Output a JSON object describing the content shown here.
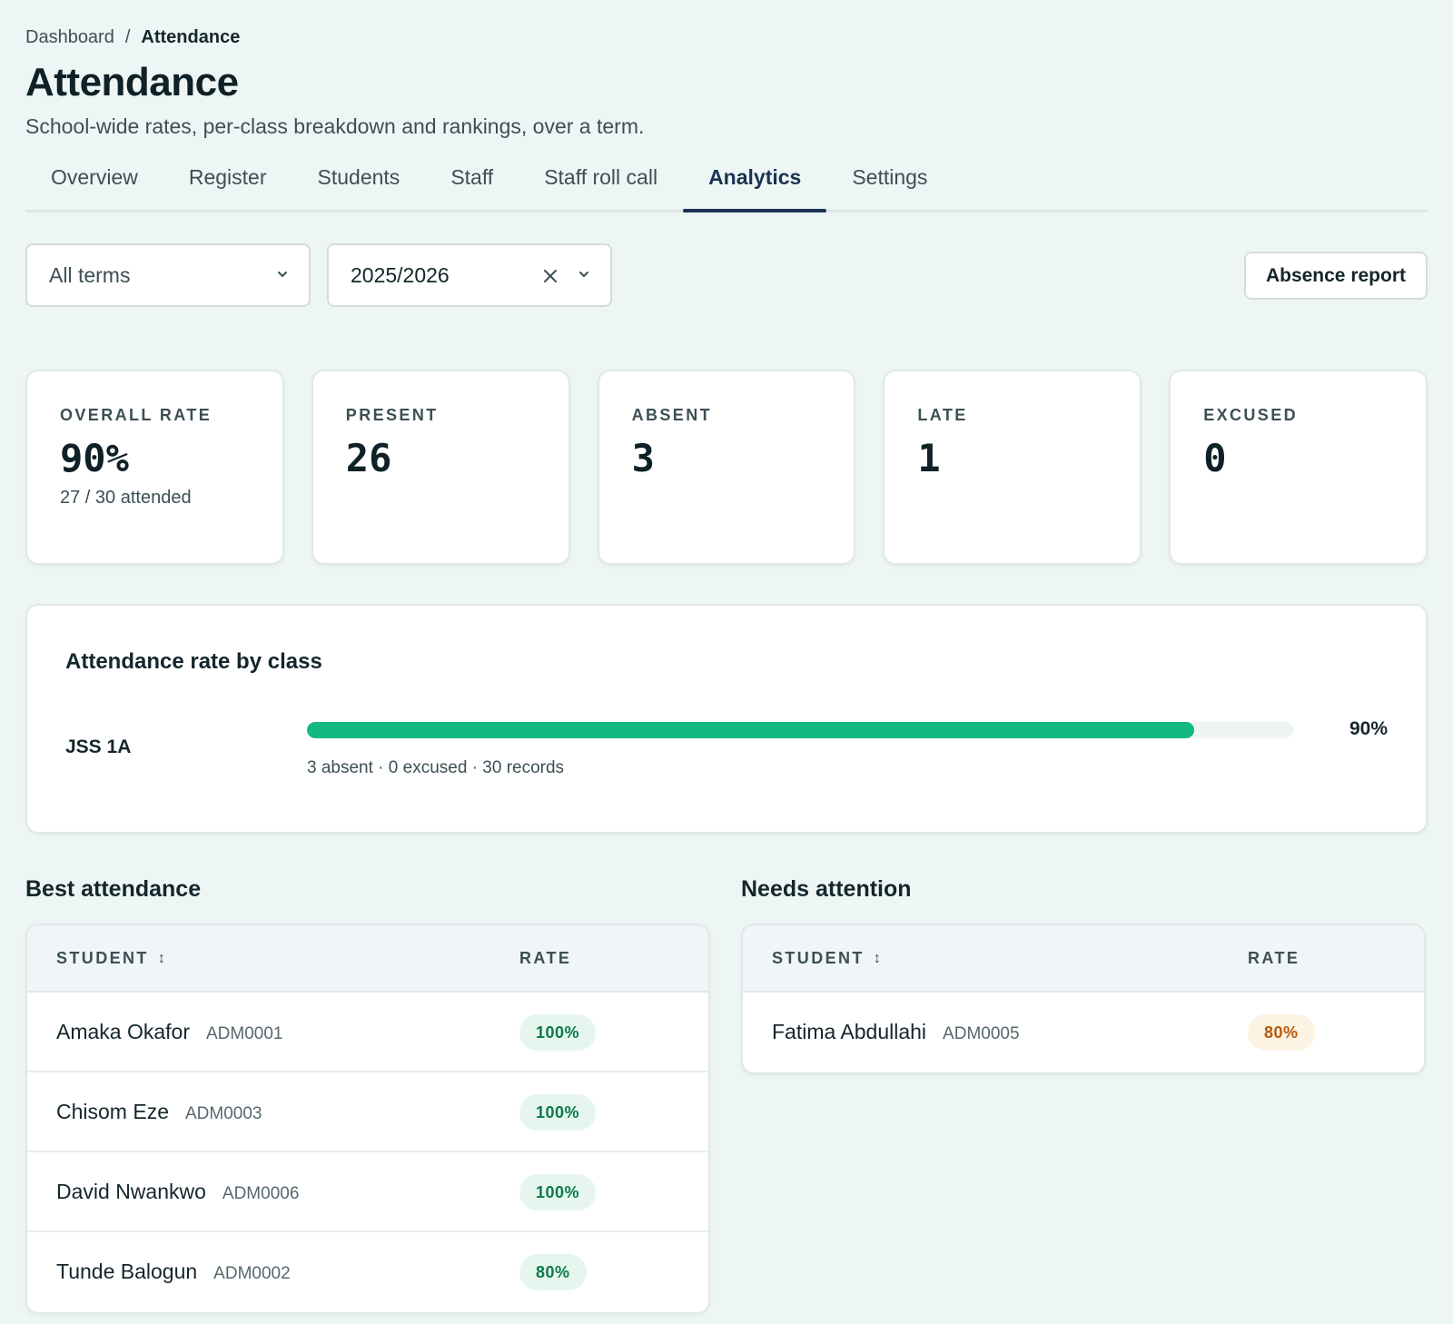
{
  "breadcrumb": {
    "root": "Dashboard",
    "separator": "/",
    "current": "Attendance"
  },
  "header": {
    "title": "Attendance",
    "subtitle": "School-wide rates, per-class breakdown and rankings, over a term."
  },
  "tabs": [
    {
      "label": "Overview"
    },
    {
      "label": "Register"
    },
    {
      "label": "Students"
    },
    {
      "label": "Staff"
    },
    {
      "label": "Staff roll call"
    },
    {
      "label": "Analytics",
      "active": true
    },
    {
      "label": "Settings"
    }
  ],
  "filters": {
    "term": {
      "value": "All terms"
    },
    "session": {
      "value": "2025/2026"
    },
    "report_button": "Absence report"
  },
  "stats": [
    {
      "label": "OVERALL RATE",
      "value": "90%",
      "sub": "27 / 30 attended"
    },
    {
      "label": "PRESENT",
      "value": "26",
      "sub": ""
    },
    {
      "label": "ABSENT",
      "value": "3",
      "sub": ""
    },
    {
      "label": "LATE",
      "value": "1",
      "sub": ""
    },
    {
      "label": "EXCUSED",
      "value": "0",
      "sub": ""
    }
  ],
  "class_rates": {
    "title": "Attendance rate by class",
    "rows": [
      {
        "class": "JSS 1A",
        "rate": 0.9,
        "rate_label": "90%",
        "meta": "3 absent · 0 excused · 30 records"
      }
    ]
  },
  "best": {
    "title": "Best attendance",
    "col_student": "STUDENT",
    "col_rate": "RATE",
    "rows": [
      {
        "name": "Amaka Okafor",
        "adm": "ADM0001",
        "rate": "100%"
      },
      {
        "name": "Chisom Eze",
        "adm": "ADM0003",
        "rate": "100%"
      },
      {
        "name": "David Nwankwo",
        "adm": "ADM0006",
        "rate": "100%"
      },
      {
        "name": "Tunde Balogun",
        "adm": "ADM0002",
        "rate": "80%"
      }
    ]
  },
  "attention": {
    "title": "Needs attention",
    "col_student": "STUDENT",
    "col_rate": "RATE",
    "rows": [
      {
        "name": "Fatima Abdullahi",
        "adm": "ADM0005",
        "rate": "80%"
      }
    ]
  },
  "colors": {
    "accent": "#1a3352",
    "bar": "#13b981",
    "good": "#0a7a4e",
    "warn": "#b4590b"
  }
}
